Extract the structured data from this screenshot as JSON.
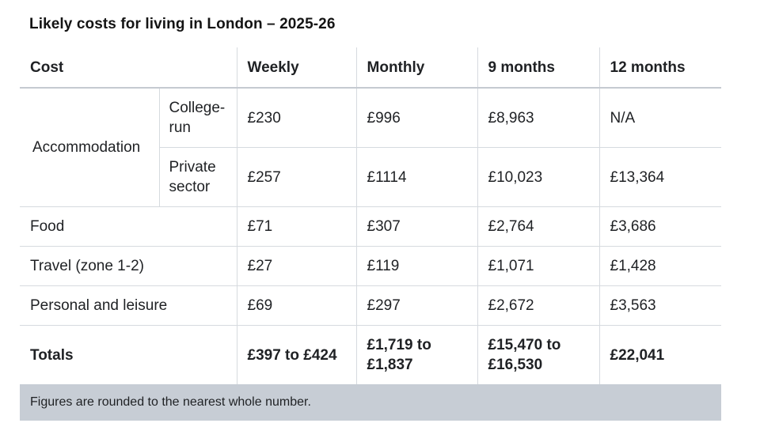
{
  "caption": "Likely costs for living in London – 2025-26",
  "headers": [
    "Cost",
    "Weekly",
    "Monthly",
    "9 months",
    "12 months"
  ],
  "accommodation": {
    "label": "Accommodation",
    "rows": [
      {
        "sub": "College-run",
        "weekly": "£230",
        "monthly": "£996",
        "nine": "£8,963",
        "twelve": "N/A"
      },
      {
        "sub": "Private sector",
        "weekly": "£257",
        "monthly": "£1114",
        "nine": "£10,023",
        "twelve": "£13,364"
      }
    ]
  },
  "rows": [
    {
      "label": "Food",
      "weekly": "£71",
      "monthly": "£307",
      "nine": "£2,764",
      "twelve": "£3,686"
    },
    {
      "label": "Travel (zone 1-2)",
      "weekly": "£27",
      "monthly": "£119",
      "nine": "£1,071",
      "twelve": "£1,428"
    },
    {
      "label": "Personal and leisure",
      "weekly": "£69",
      "monthly": "£297",
      "nine": "£2,672",
      "twelve": "£3,563"
    }
  ],
  "totals": {
    "label": "Totals",
    "weekly": "£397 to £424",
    "monthly": "£1,719 to £1,837",
    "nine": "£15,470 to £16,530",
    "twelve": "£22,041"
  },
  "note": "Figures are rounded to the nearest whole number."
}
